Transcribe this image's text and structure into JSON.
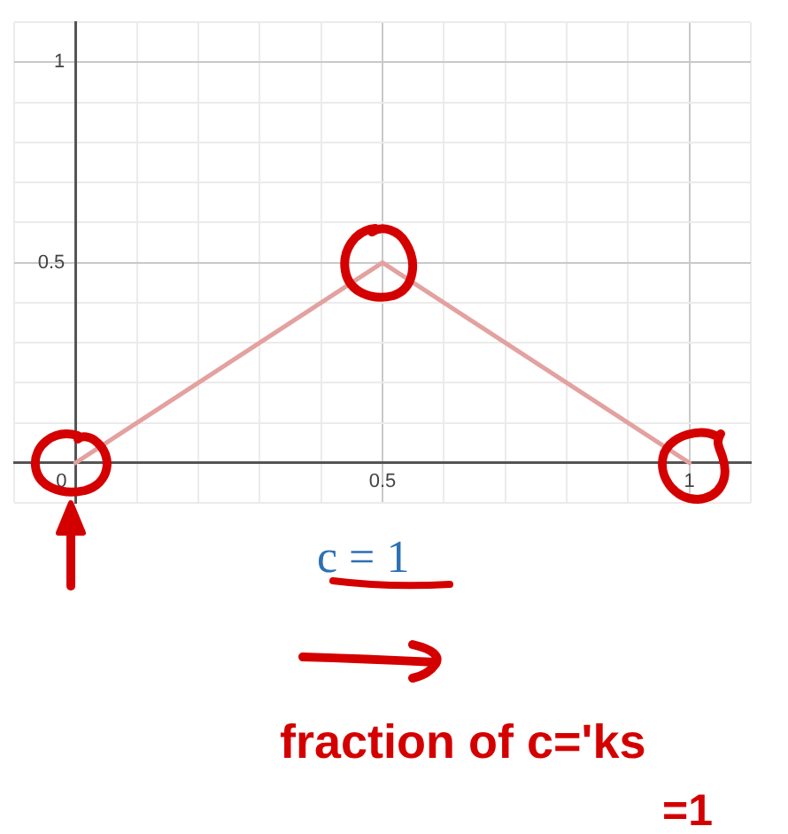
{
  "chart_data": {
    "type": "line",
    "x": [
      0,
      0.5,
      1
    ],
    "series": [
      {
        "color": "#e3a19f",
        "values": [
          0,
          0.5,
          0
        ]
      }
    ],
    "xlim": [
      -0.1,
      1.1
    ],
    "ylim": [
      -0.1,
      1.1
    ],
    "xticks": [
      {
        "value": -0.1,
        "label": null
      },
      0,
      {
        "value": 0.1,
        "label": null
      },
      {
        "value": 0.2,
        "label": null
      },
      {
        "value": 0.3,
        "label": null
      },
      {
        "value": 0.4,
        "label": null
      },
      0.5,
      {
        "value": 0.6,
        "label": null
      },
      {
        "value": 0.7,
        "label": null
      },
      {
        "value": 0.8,
        "label": null
      },
      {
        "value": 0.9,
        "label": null
      },
      1,
      {
        "value": 1.1,
        "label": null
      }
    ],
    "yticks": [
      {
        "value": -0.1,
        "label": null
      },
      {
        "value": 0,
        "label": null
      },
      {
        "value": 0.1,
        "label": null
      },
      {
        "value": 0.2,
        "label": null
      },
      {
        "value": 0.3,
        "label": null
      },
      {
        "value": 0.4,
        "label": null
      },
      0.5,
      {
        "value": 0.6,
        "label": null
      },
      {
        "value": 0.7,
        "label": null
      },
      {
        "value": 0.8,
        "label": null
      },
      {
        "value": 0.9,
        "label": null
      },
      1,
      {
        "value": 1.1,
        "label": null
      }
    ],
    "grid": true,
    "legend": false,
    "marker": "none",
    "line_style": "solid",
    "annotations": [
      "c = 1",
      "fraction of c='ks",
      "=1"
    ]
  }
}
